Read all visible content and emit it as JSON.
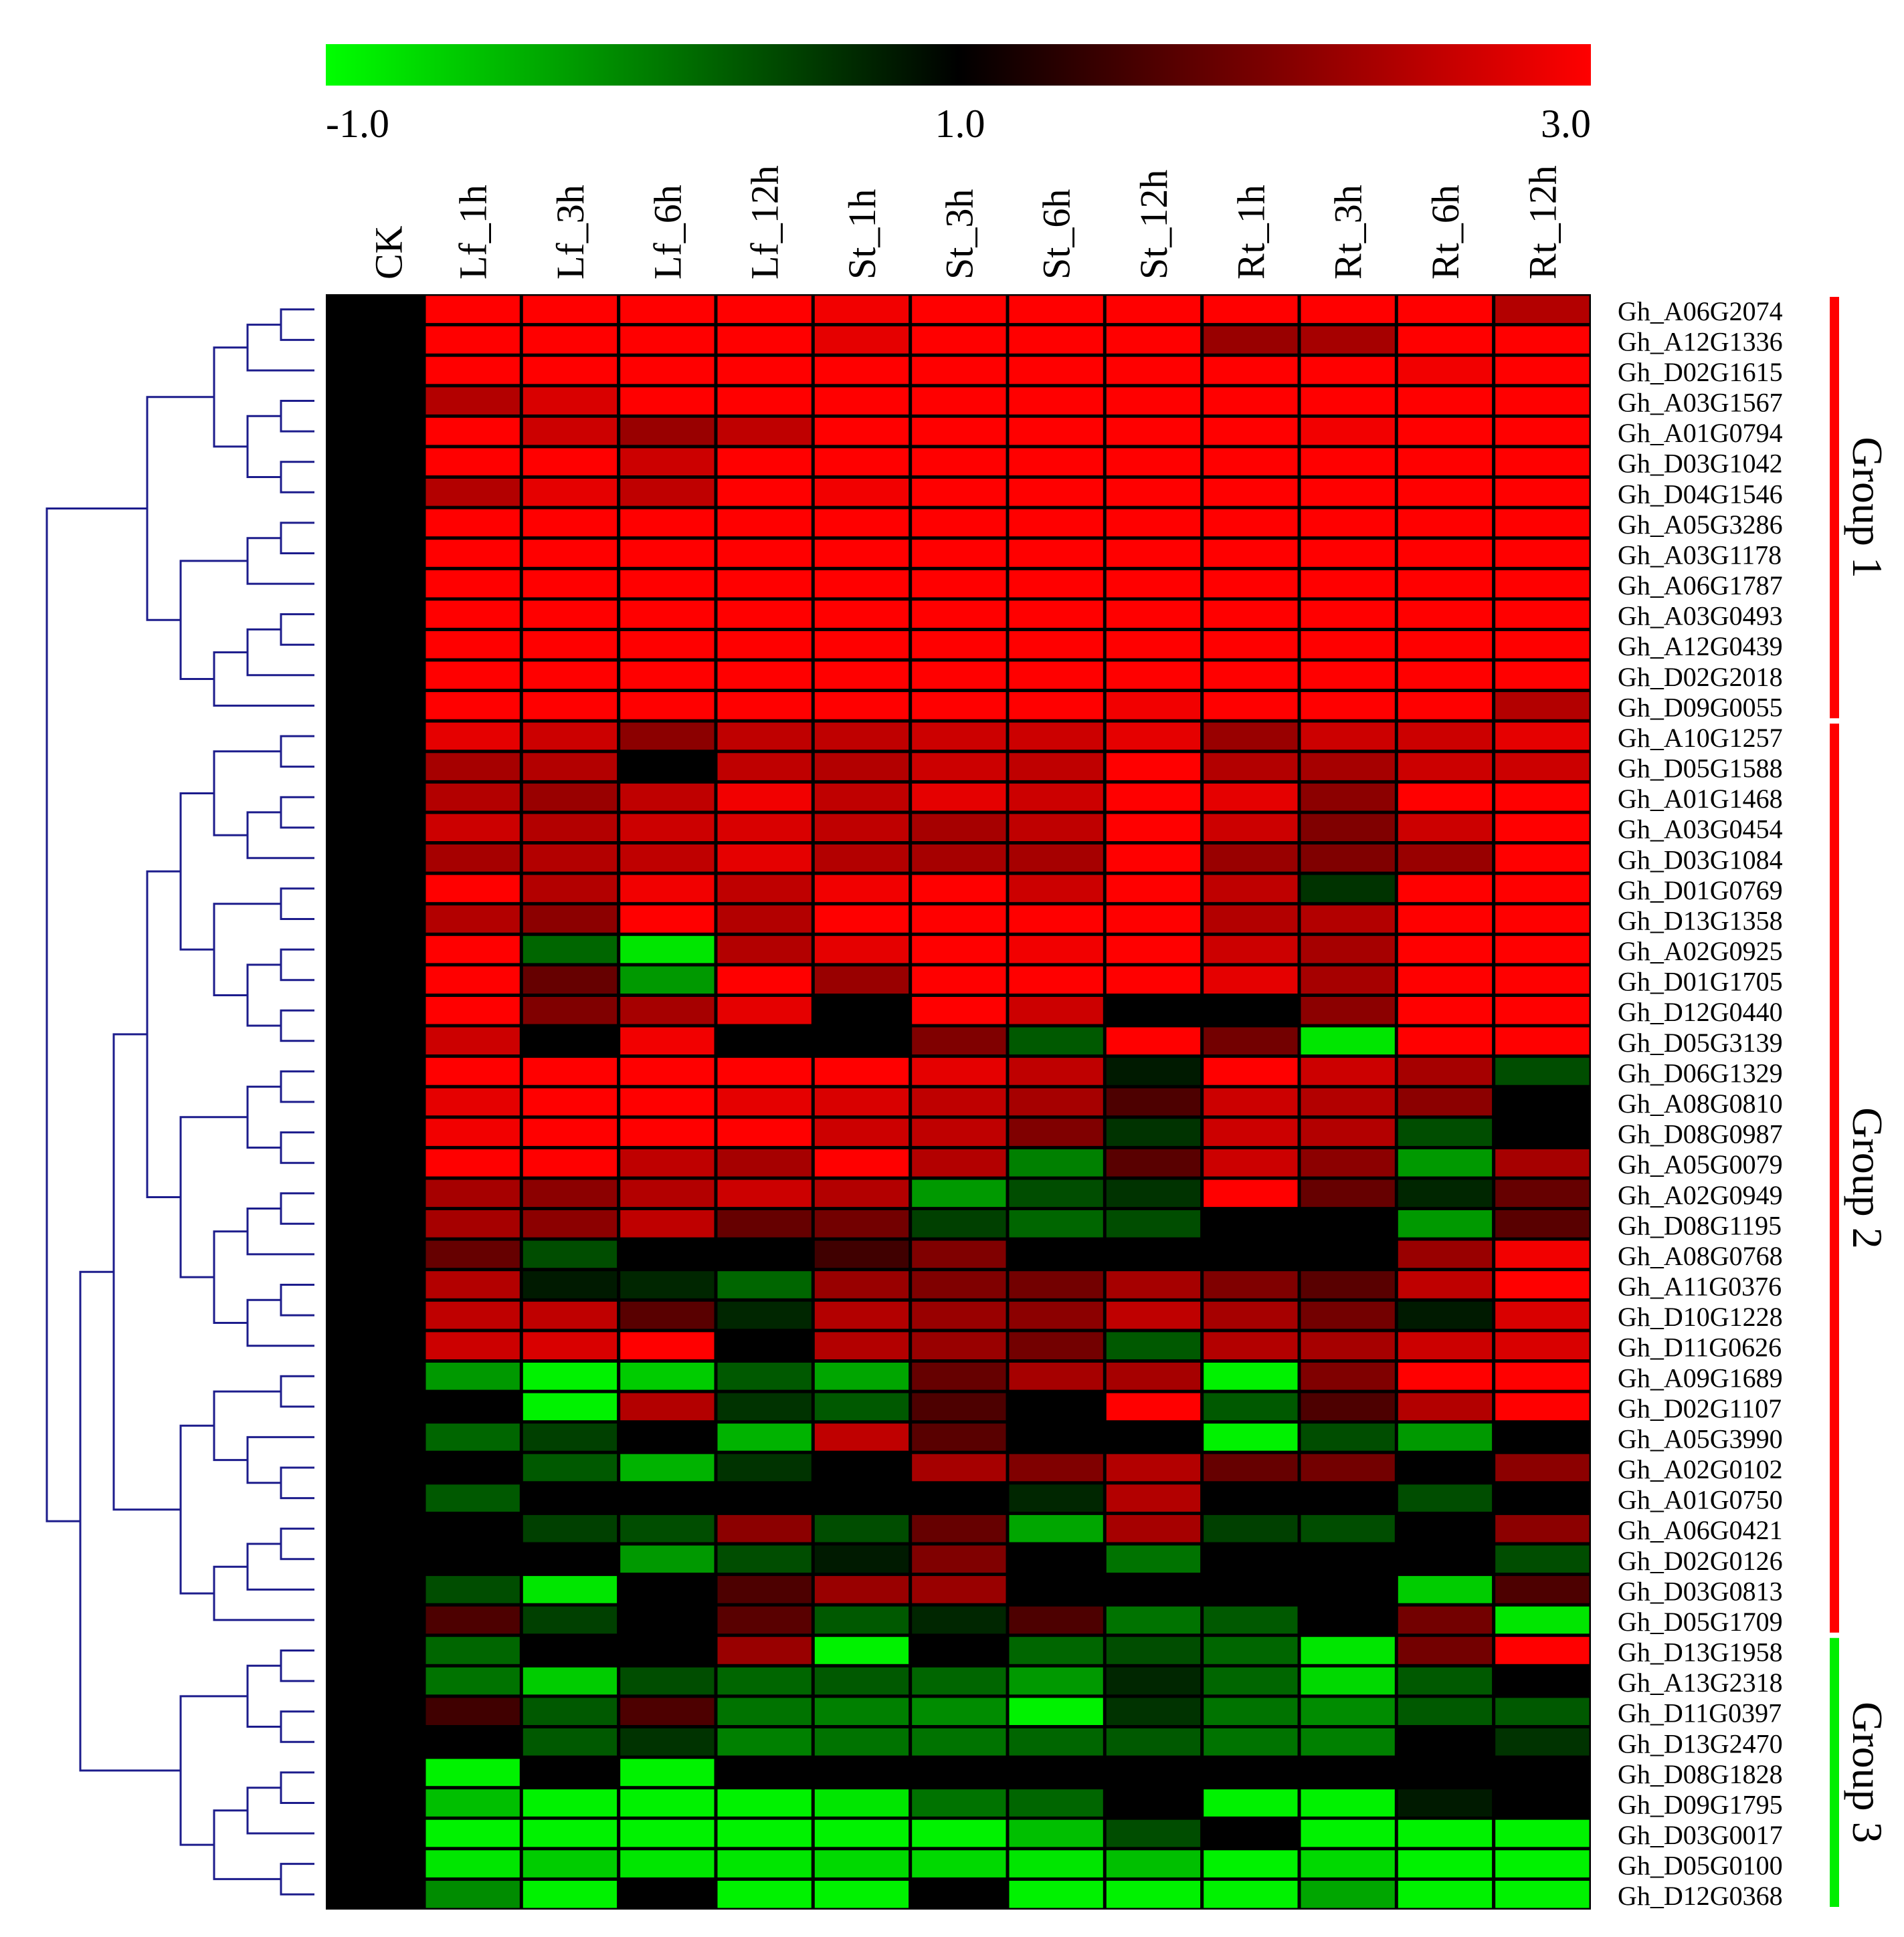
{
  "chart_data": {
    "type": "heatmap",
    "colorbar": {
      "min": -1.0,
      "mid": 1.0,
      "max": 3.0,
      "tick_labels": [
        "-1.0",
        "1.0",
        "3.0"
      ],
      "colors": {
        "low": "#00ff00",
        "mid": "#000000",
        "high": "#ff0000"
      }
    },
    "columns": [
      "CK",
      "Lf_1h",
      "Lf_3h",
      "Lf_6h",
      "Lf_12h",
      "St_1h",
      "St_3h",
      "St_6h",
      "St_12h",
      "Rt_1h",
      "Rt_3h",
      "Rt_6h",
      "Rt_12h"
    ],
    "rows": [
      "Gh_A06G2074",
      "Gh_A12G1336",
      "Gh_D02G1615",
      "Gh_A03G1567",
      "Gh_A01G0794",
      "Gh_D03G1042",
      "Gh_D04G1546",
      "Gh_A05G3286",
      "Gh_A03G1178",
      "Gh_A06G1787",
      "Gh_A03G0493",
      "Gh_A12G0439",
      "Gh_D02G2018",
      "Gh_D09G0055",
      "Gh_A10G1257",
      "Gh_D05G1588",
      "Gh_A01G1468",
      "Gh_A03G0454",
      "Gh_D03G1084",
      "Gh_D01G0769",
      "Gh_D13G1358",
      "Gh_A02G0925",
      "Gh_D01G1705",
      "Gh_D12G0440",
      "Gh_D05G3139",
      "Gh_D06G1329",
      "Gh_A08G0810",
      "Gh_D08G0987",
      "Gh_A05G0079",
      "Gh_A02G0949",
      "Gh_D08G1195",
      "Gh_A08G0768",
      "Gh_A11G0376",
      "Gh_D10G1228",
      "Gh_D11G0626",
      "Gh_A09G1689",
      "Gh_D02G1107",
      "Gh_A05G3990",
      "Gh_A02G0102",
      "Gh_A01G0750",
      "Gh_A06G0421",
      "Gh_D02G0126",
      "Gh_D03G0813",
      "Gh_D05G1709",
      "Gh_D13G1958",
      "Gh_A13G2318",
      "Gh_D11G0397",
      "Gh_D13G2470",
      "Gh_D08G1828",
      "Gh_D09G1795",
      "Gh_D03G0017",
      "Gh_D05G0100",
      "Gh_D12G0368"
    ],
    "values": [
      [
        1.0,
        3.0,
        3.0,
        3.0,
        3.0,
        2.9,
        3.0,
        3.0,
        3.0,
        3.0,
        3.0,
        3.0,
        2.4
      ],
      [
        1.0,
        3.0,
        3.0,
        3.0,
        3.0,
        2.8,
        3.0,
        3.0,
        3.0,
        2.2,
        2.3,
        3.0,
        3.0
      ],
      [
        1.0,
        3.0,
        3.0,
        3.0,
        3.0,
        3.0,
        3.0,
        3.0,
        3.0,
        3.0,
        3.0,
        2.9,
        3.0
      ],
      [
        1.0,
        2.4,
        2.7,
        3.0,
        3.0,
        3.0,
        3.0,
        3.0,
        3.0,
        3.0,
        3.0,
        3.0,
        3.0
      ],
      [
        1.0,
        3.0,
        2.6,
        2.2,
        2.5,
        3.0,
        3.0,
        3.0,
        3.0,
        3.0,
        2.9,
        3.0,
        3.0
      ],
      [
        1.0,
        3.0,
        3.0,
        2.6,
        3.0,
        3.0,
        3.0,
        3.0,
        3.0,
        3.0,
        3.0,
        3.0,
        3.0
      ],
      [
        1.0,
        2.4,
        2.8,
        2.5,
        3.0,
        2.9,
        3.0,
        3.0,
        3.0,
        3.0,
        3.0,
        3.0,
        3.0
      ],
      [
        1.0,
        3.0,
        3.0,
        3.0,
        3.0,
        3.0,
        3.0,
        3.0,
        3.0,
        3.0,
        3.0,
        3.0,
        3.0
      ],
      [
        1.0,
        3.0,
        3.0,
        3.0,
        3.0,
        3.0,
        3.0,
        3.0,
        3.0,
        3.0,
        3.0,
        3.0,
        3.0
      ],
      [
        1.0,
        3.0,
        3.0,
        3.0,
        3.0,
        3.0,
        3.0,
        3.0,
        3.0,
        3.0,
        3.0,
        3.0,
        3.0
      ],
      [
        1.0,
        3.0,
        3.0,
        3.0,
        3.0,
        3.0,
        3.0,
        3.0,
        3.0,
        3.0,
        3.0,
        3.0,
        3.0
      ],
      [
        1.0,
        3.0,
        3.0,
        3.0,
        3.0,
        3.0,
        3.0,
        3.0,
        3.0,
        3.0,
        3.0,
        3.0,
        3.0
      ],
      [
        1.0,
        3.0,
        3.0,
        3.0,
        3.0,
        3.0,
        3.0,
        3.0,
        3.0,
        3.0,
        3.0,
        3.0,
        3.0
      ],
      [
        1.0,
        3.0,
        3.0,
        3.0,
        3.0,
        3.0,
        3.0,
        3.0,
        2.9,
        3.0,
        3.0,
        3.0,
        2.4
      ],
      [
        1.0,
        2.8,
        2.6,
        2.1,
        2.5,
        2.5,
        2.6,
        2.6,
        2.8,
        2.2,
        2.6,
        2.6,
        2.8
      ],
      [
        1.0,
        2.3,
        2.4,
        1.0,
        2.5,
        2.4,
        2.6,
        2.5,
        3.0,
        2.4,
        2.3,
        2.6,
        2.6
      ],
      [
        1.0,
        2.4,
        2.2,
        2.5,
        2.9,
        2.5,
        2.8,
        2.6,
        3.0,
        2.8,
        2.1,
        3.0,
        3.0
      ],
      [
        1.0,
        2.6,
        2.4,
        2.6,
        2.7,
        2.5,
        2.3,
        2.5,
        3.0,
        2.6,
        2.0,
        2.6,
        3.0
      ],
      [
        1.0,
        2.3,
        2.4,
        2.5,
        2.8,
        2.4,
        2.3,
        2.3,
        3.0,
        2.2,
        2.0,
        2.2,
        3.0
      ],
      [
        1.0,
        3.0,
        2.4,
        2.9,
        2.5,
        2.9,
        3.0,
        2.6,
        3.0,
        2.5,
        0.6,
        3.0,
        3.0
      ],
      [
        1.0,
        2.4,
        2.1,
        3.0,
        2.4,
        3.0,
        3.0,
        3.0,
        3.0,
        2.4,
        2.4,
        3.0,
        3.0
      ],
      [
        1.0,
        3.0,
        0.2,
        -0.8,
        2.4,
        2.8,
        3.0,
        2.9,
        3.0,
        2.6,
        2.3,
        3.0,
        3.0
      ],
      [
        1.0,
        3.0,
        1.8,
        -0.2,
        3.0,
        2.2,
        3.0,
        3.0,
        3.0,
        2.8,
        2.3,
        3.0,
        3.0
      ],
      [
        1.0,
        3.0,
        2.0,
        2.3,
        2.8,
        1.0,
        3.0,
        2.6,
        1.0,
        1.0,
        2.1,
        3.0,
        3.0
      ],
      [
        1.0,
        2.6,
        1.0,
        2.9,
        1.0,
        1.0,
        2.0,
        0.3,
        3.0,
        1.9,
        -0.8,
        3.0,
        3.0
      ],
      [
        1.0,
        3.0,
        3.0,
        3.0,
        3.0,
        3.0,
        2.8,
        2.5,
        0.8,
        3.0,
        2.6,
        2.3,
        0.4
      ],
      [
        1.0,
        2.8,
        3.0,
        3.0,
        2.8,
        2.7,
        2.5,
        2.3,
        1.6,
        2.6,
        2.4,
        2.1,
        1.0
      ],
      [
        1.0,
        2.9,
        3.0,
        3.0,
        3.0,
        2.6,
        2.5,
        2.0,
        0.6,
        2.6,
        2.4,
        0.4,
        1.0
      ],
      [
        1.0,
        3.0,
        3.0,
        2.5,
        2.3,
        3.0,
        2.4,
        0.0,
        1.7,
        2.6,
        2.1,
        -0.2,
        2.3
      ],
      [
        1.0,
        2.3,
        2.1,
        2.4,
        2.6,
        2.4,
        -0.2,
        0.4,
        0.6,
        3.0,
        1.8,
        0.7,
        1.8
      ],
      [
        1.0,
        2.3,
        2.1,
        2.5,
        1.8,
        1.9,
        0.5,
        0.2,
        0.4,
        1.0,
        1.0,
        -0.2,
        1.7
      ],
      [
        1.0,
        1.8,
        0.4,
        1.0,
        1.0,
        1.5,
        2.0,
        1.0,
        1.0,
        1.0,
        1.0,
        2.2,
        2.9
      ],
      [
        1.0,
        2.4,
        0.8,
        0.7,
        0.2,
        2.2,
        2.0,
        1.9,
        2.3,
        2.0,
        1.7,
        2.5,
        3.0
      ],
      [
        1.0,
        2.5,
        2.5,
        1.7,
        0.7,
        2.4,
        2.2,
        2.1,
        2.5,
        2.3,
        1.9,
        0.8,
        2.7
      ],
      [
        1.0,
        2.6,
        2.7,
        3.0,
        1.0,
        2.4,
        2.2,
        1.9,
        0.3,
        2.4,
        2.3,
        2.6,
        2.7
      ],
      [
        1.0,
        -0.2,
        -0.9,
        -0.6,
        0.3,
        -0.3,
        1.8,
        2.3,
        2.3,
        -0.9,
        2.0,
        3.0,
        3.0
      ],
      [
        1.0,
        1.0,
        -0.9,
        2.4,
        0.6,
        0.3,
        1.6,
        1.0,
        3.0,
        0.3,
        1.6,
        2.4,
        3.0
      ],
      [
        1.0,
        0.2,
        0.5,
        1.0,
        -0.4,
        2.5,
        1.7,
        1.0,
        1.0,
        -0.9,
        0.4,
        -0.2,
        1.0
      ],
      [
        1.0,
        1.0,
        0.3,
        -0.4,
        0.6,
        1.0,
        2.3,
        2.0,
        2.4,
        1.8,
        1.9,
        1.0,
        2.1
      ],
      [
        1.0,
        0.3,
        1.0,
        1.0,
        1.0,
        1.0,
        1.0,
        0.7,
        2.4,
        1.0,
        1.0,
        0.4,
        1.0
      ],
      [
        1.0,
        1.0,
        0.5,
        0.4,
        2.1,
        0.4,
        1.8,
        -0.3,
        2.3,
        0.5,
        0.4,
        1.0,
        2.1
      ],
      [
        1.0,
        1.0,
        1.0,
        -0.2,
        0.4,
        0.8,
        2.0,
        1.0,
        0.1,
        1.0,
        1.0,
        1.0,
        0.4
      ],
      [
        1.0,
        0.4,
        -0.8,
        1.0,
        1.6,
        2.2,
        2.2,
        1.0,
        1.0,
        1.0,
        1.0,
        -0.6,
        1.6
      ],
      [
        1.0,
        1.6,
        0.5,
        1.0,
        1.7,
        0.3,
        0.7,
        1.6,
        0.1,
        0.3,
        1.0,
        1.9,
        -0.8
      ],
      [
        1.0,
        0.2,
        1.0,
        1.0,
        2.2,
        -0.9,
        1.0,
        0.2,
        0.4,
        0.2,
        -0.8,
        1.9,
        3.0
      ],
      [
        1.0,
        0.1,
        -0.6,
        0.4,
        0.2,
        0.3,
        0.2,
        -0.2,
        0.7,
        0.2,
        -0.7,
        0.3,
        1.0
      ],
      [
        1.0,
        1.5,
        0.3,
        1.6,
        0.1,
        0.0,
        -0.1,
        -0.9,
        0.6,
        0.1,
        -0.1,
        0.3,
        0.3
      ],
      [
        1.0,
        1.0,
        0.3,
        0.6,
        0.0,
        0.1,
        0.1,
        0.2,
        0.3,
        0.1,
        0.0,
        1.0,
        0.6
      ],
      [
        1.0,
        -0.9,
        1.0,
        -0.9,
        1.0,
        1.0,
        1.0,
        1.0,
        1.0,
        1.0,
        1.0,
        1.0,
        1.0
      ],
      [
        1.0,
        -0.5,
        -0.9,
        -0.9,
        -0.9,
        -0.8,
        0.1,
        0.2,
        1.0,
        -0.9,
        -0.9,
        0.8,
        1.0
      ],
      [
        1.0,
        -0.9,
        -0.9,
        -0.9,
        -0.9,
        -0.9,
        -0.9,
        -0.5,
        0.4,
        1.0,
        -0.9,
        -0.9,
        -0.9
      ],
      [
        1.0,
        -0.8,
        -0.6,
        -0.8,
        -0.8,
        -0.7,
        -0.7,
        -0.8,
        -0.5,
        -0.9,
        -0.7,
        -0.9,
        -0.9
      ],
      [
        1.0,
        -0.1,
        -0.9,
        1.0,
        -0.9,
        -0.9,
        1.0,
        -0.9,
        -0.9,
        -0.9,
        -0.3,
        -0.9,
        -0.9
      ]
    ],
    "groups": [
      {
        "name": "Group 1",
        "color": "#ff0000",
        "first_row": 0,
        "last_row": 13
      },
      {
        "name": "Group 2",
        "color": "#ff0000",
        "first_row": 14,
        "last_row": 43
      },
      {
        "name": "Group 3",
        "color": "#00ee00",
        "first_row": 44,
        "last_row": 52
      }
    ],
    "dendrogram_color": "#1c1c8c",
    "title": "",
    "xlabel": "",
    "ylabel": ""
  }
}
